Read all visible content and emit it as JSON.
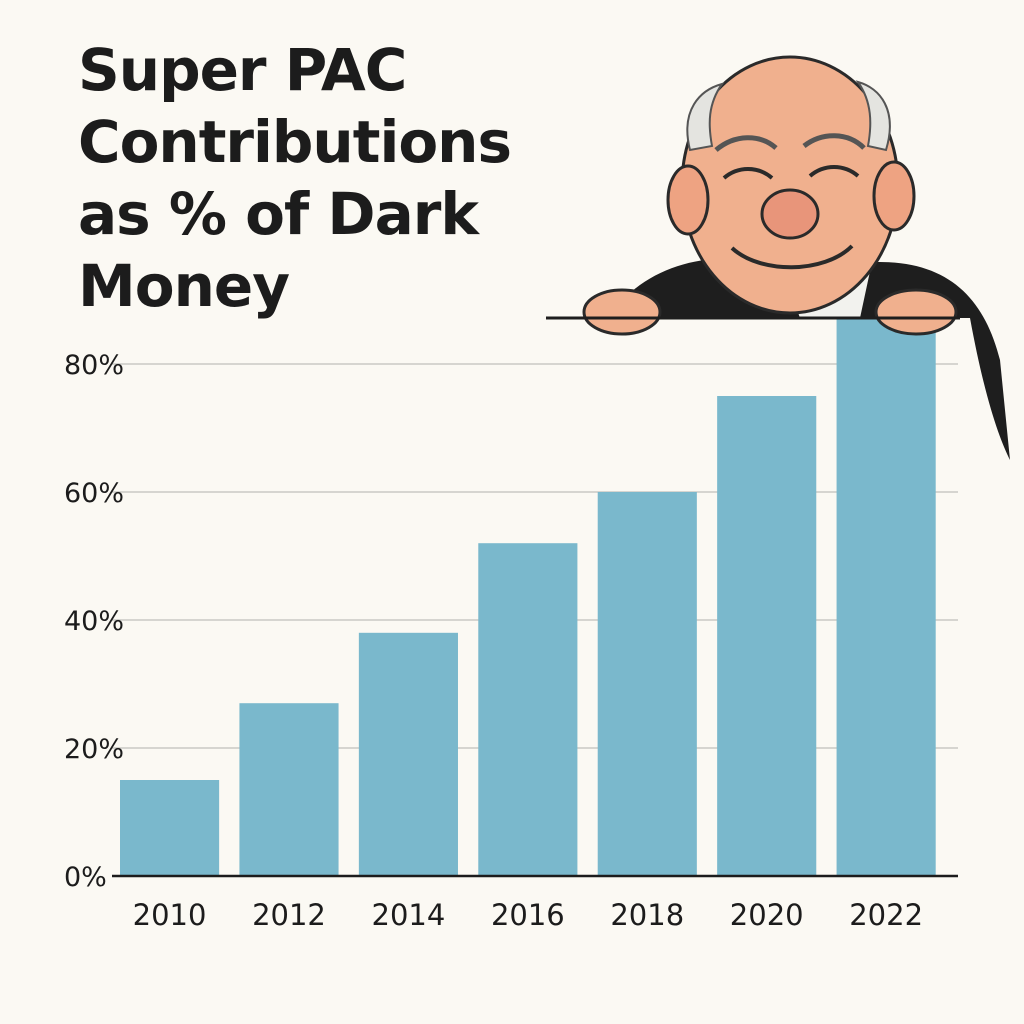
{
  "chart_data": {
    "type": "bar",
    "title": "Super PAC Contributions as % of Dark Money",
    "xlabel": "",
    "ylabel": "",
    "categories": [
      "2010",
      "2012",
      "2014",
      "2016",
      "2018",
      "2020",
      "2022"
    ],
    "values": [
      15,
      27,
      38,
      52,
      60,
      75,
      87
    ],
    "ylim": [
      0,
      90
    ],
    "yticks": [
      0,
      20,
      40,
      60,
      80
    ],
    "ytick_labels": [
      "0%",
      "20%",
      "40%",
      "60%",
      "80%"
    ],
    "grid": true,
    "legend": "none"
  },
  "colors": {
    "bar": "#7ab8cc",
    "grid": "#c9c9c4",
    "axis": "#1c1c1c",
    "background": "#fbf9f3"
  },
  "illustration": {
    "icon": "peeking-old-man-cartoon"
  }
}
